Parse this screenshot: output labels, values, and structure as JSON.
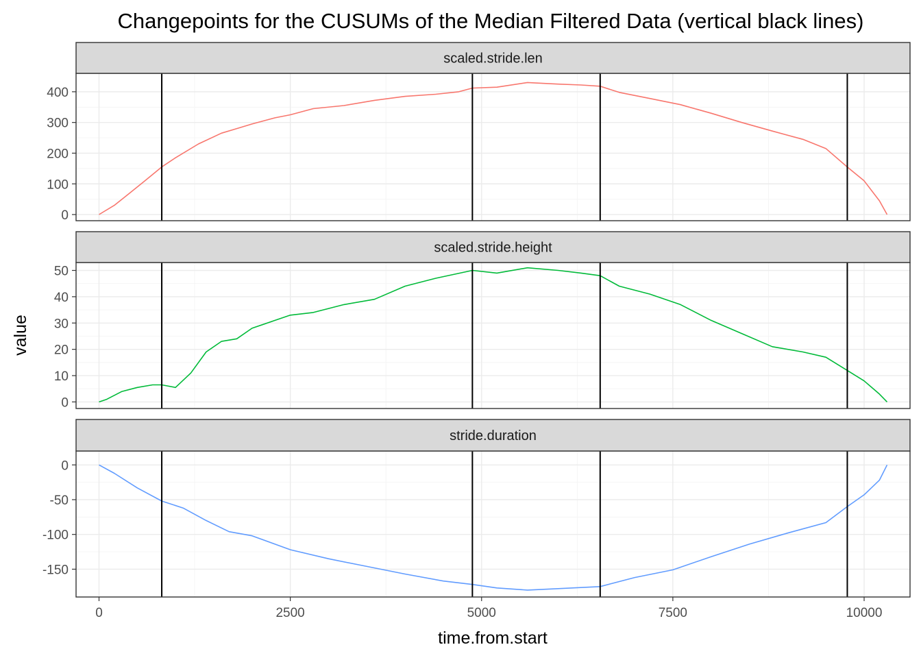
{
  "chart_data": {
    "type": "line",
    "title": "Changepoints for the CUSUMs of the Median Filtered Data (vertical black lines)",
    "xlabel": "time.from.start",
    "ylabel": "value",
    "xlim": [
      -300,
      10600
    ],
    "x_ticks": [
      0,
      2500,
      5000,
      7500,
      10000
    ],
    "changepoints": [
      820,
      4880,
      6550,
      9780
    ],
    "grid": true,
    "legend": "none",
    "facets": [
      {
        "strip": "scaled.stride.len",
        "color": "#F8766D",
        "ylim": [
          -20,
          460
        ],
        "y_ticks": [
          0,
          100,
          200,
          300,
          400
        ],
        "x": [
          0,
          200,
          400,
          600,
          820,
          1000,
          1300,
          1600,
          1800,
          2000,
          2300,
          2500,
          2800,
          3200,
          3600,
          4000,
          4400,
          4700,
          4880,
          5200,
          5600,
          6000,
          6300,
          6550,
          6800,
          7200,
          7600,
          8000,
          8400,
          8800,
          9200,
          9500,
          9780,
          10000,
          10200,
          10300
        ],
        "values": [
          0,
          30,
          70,
          110,
          155,
          185,
          230,
          265,
          280,
          295,
          315,
          325,
          345,
          355,
          372,
          385,
          392,
          400,
          412,
          415,
          430,
          425,
          422,
          418,
          398,
          378,
          358,
          330,
          300,
          272,
          245,
          215,
          155,
          110,
          45,
          0
        ]
      },
      {
        "strip": "scaled.stride.height",
        "color": "#00BA38",
        "ylim": [
          -2.5,
          53
        ],
        "y_ticks": [
          0,
          10,
          20,
          30,
          40,
          50
        ],
        "x": [
          0,
          100,
          300,
          500,
          700,
          820,
          1000,
          1200,
          1400,
          1600,
          1800,
          2000,
          2300,
          2500,
          2800,
          3200,
          3600,
          4000,
          4400,
          4880,
          5200,
          5600,
          6000,
          6300,
          6550,
          6800,
          7200,
          7600,
          8000,
          8400,
          8800,
          9200,
          9500,
          9780,
          10000,
          10200,
          10300
        ],
        "values": [
          0,
          1,
          4,
          5.5,
          6.5,
          6.5,
          5.5,
          11,
          19,
          23,
          24,
          28,
          31,
          33,
          34,
          37,
          39,
          44,
          47,
          50,
          49,
          51,
          50,
          49,
          48,
          44,
          41,
          37,
          31,
          26,
          21,
          19,
          17,
          12,
          8,
          3,
          0
        ]
      },
      {
        "strip": "stride.duration",
        "color": "#619CFF",
        "ylim": [
          -190,
          20
        ],
        "y_ticks": [
          0,
          -50,
          -100,
          -150
        ],
        "x": [
          0,
          200,
          500,
          820,
          1100,
          1400,
          1700,
          2000,
          2500,
          3000,
          3500,
          4000,
          4500,
          4880,
          5200,
          5600,
          6000,
          6550,
          7000,
          7500,
          8000,
          8500,
          9000,
          9500,
          9780,
          10000,
          10200,
          10300
        ],
        "values": [
          0,
          -12,
          -33,
          -52,
          -62,
          -80,
          -96,
          -102,
          -122,
          -135,
          -146,
          -157,
          -167,
          -172,
          -177,
          -180,
          -178,
          -175,
          -162,
          -151,
          -132,
          -114,
          -98,
          -83,
          -60,
          -43,
          -22,
          0
        ]
      }
    ]
  }
}
